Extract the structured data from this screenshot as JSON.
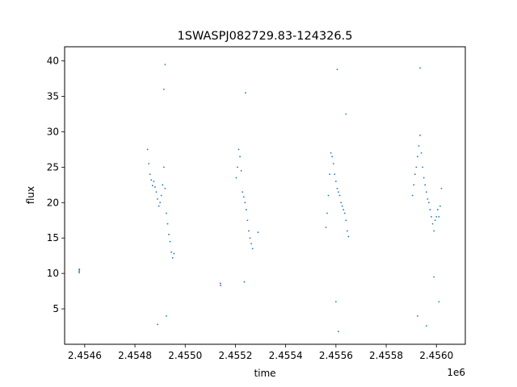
{
  "chart_data": {
    "type": "scatter",
    "title": "1SWASPJ082729.83-124326.5",
    "xlabel": "time",
    "ylabel": "flux",
    "x_offset_label": "1e6",
    "xlim": [
      2454520,
      2456115
    ],
    "ylim": [
      0,
      42
    ],
    "x_ticks": [
      2454600,
      2454800,
      2455000,
      2455200,
      2455400,
      2455600,
      2455800,
      2456000
    ],
    "x_tick_labels": [
      "2.4546",
      "2.4548",
      "2.4550",
      "2.4552",
      "2.4554",
      "2.4556",
      "2.4558",
      "2.4560"
    ],
    "y_ticks": [
      5,
      10,
      15,
      20,
      25,
      30,
      35,
      40
    ],
    "y_tick_labels": [
      "5",
      "10",
      "15",
      "20",
      "25",
      "30",
      "35",
      "40"
    ],
    "grid": false,
    "marker_color": "#1f77b4",
    "series": [
      {
        "points": [
          [
            2454578,
            10.6
          ],
          [
            2454578,
            10.3
          ],
          [
            2454579,
            10.5
          ],
          [
            2454578,
            10.1
          ],
          [
            2454850,
            27.5
          ],
          [
            2454855,
            25.5
          ],
          [
            2454860,
            24.0
          ],
          [
            2454865,
            23.2
          ],
          [
            2454870,
            22.4
          ],
          [
            2454875,
            23.0
          ],
          [
            2454880,
            22.2
          ],
          [
            2454885,
            21.5
          ],
          [
            2454890,
            20.5
          ],
          [
            2454895,
            19.5
          ],
          [
            2454900,
            20.0
          ],
          [
            2454905,
            21.0
          ],
          [
            2454910,
            22.5
          ],
          [
            2454915,
            25.0
          ],
          [
            2454920,
            22.0
          ],
          [
            2454925,
            18.5
          ],
          [
            2454930,
            17.0
          ],
          [
            2454935,
            15.5
          ],
          [
            2454940,
            14.5
          ],
          [
            2454945,
            13.0
          ],
          [
            2454950,
            12.2
          ],
          [
            2454955,
            12.8
          ],
          [
            2455203,
            23.5
          ],
          [
            2455208,
            25.0
          ],
          [
            2455213,
            27.5
          ],
          [
            2455218,
            26.5
          ],
          [
            2455223,
            24.5
          ],
          [
            2455228,
            21.5
          ],
          [
            2455233,
            20.8
          ],
          [
            2455238,
            20.0
          ],
          [
            2455243,
            19.0
          ],
          [
            2455248,
            17.5
          ],
          [
            2455253,
            16.0
          ],
          [
            2455258,
            15.0
          ],
          [
            2455263,
            14.2
          ],
          [
            2455268,
            13.5
          ],
          [
            2455290,
            15.8
          ],
          [
            2455140,
            8.6
          ],
          [
            2455141,
            8.3
          ],
          [
            2455560,
            16.5
          ],
          [
            2455565,
            18.5
          ],
          [
            2455570,
            21.0
          ],
          [
            2455575,
            24.0
          ],
          [
            2455580,
            27.0
          ],
          [
            2455585,
            26.5
          ],
          [
            2455590,
            25.5
          ],
          [
            2455595,
            24.0
          ],
          [
            2455600,
            23.0
          ],
          [
            2455605,
            22.0
          ],
          [
            2455610,
            21.5
          ],
          [
            2455615,
            21.0
          ],
          [
            2455620,
            20.0
          ],
          [
            2455625,
            19.5
          ],
          [
            2455630,
            19.0
          ],
          [
            2455635,
            18.5
          ],
          [
            2455640,
            17.5
          ],
          [
            2455645,
            16.0
          ],
          [
            2455650,
            15.2
          ],
          [
            2455905,
            21.0
          ],
          [
            2455910,
            22.5
          ],
          [
            2455915,
            24.0
          ],
          [
            2455920,
            25.0
          ],
          [
            2455925,
            26.5
          ],
          [
            2455930,
            28.0
          ],
          [
            2455935,
            29.5
          ],
          [
            2455940,
            27.0
          ],
          [
            2455945,
            25.0
          ],
          [
            2455950,
            23.5
          ],
          [
            2455955,
            22.5
          ],
          [
            2455960,
            21.5
          ],
          [
            2455965,
            20.5
          ],
          [
            2455970,
            20.0
          ],
          [
            2455975,
            19.0
          ],
          [
            2455980,
            18.0
          ],
          [
            2455985,
            17.0
          ],
          [
            2455990,
            16.0
          ],
          [
            2455995,
            17.5
          ],
          [
            2456000,
            18.0
          ],
          [
            2456005,
            19.0
          ],
          [
            2456010,
            18.0
          ],
          [
            2456015,
            19.5
          ],
          [
            2456020,
            22.0
          ],
          [
            2454920,
            39.5
          ],
          [
            2454915,
            36.0
          ],
          [
            2454890,
            2.8
          ],
          [
            2454925,
            4.0
          ],
          [
            2455235,
            8.8
          ],
          [
            2455240,
            35.5
          ],
          [
            2455605,
            38.8
          ],
          [
            2455600,
            6.0
          ],
          [
            2455610,
            1.8
          ],
          [
            2455640,
            32.5
          ],
          [
            2455935,
            39.0
          ],
          [
            2455960,
            2.6
          ],
          [
            2455925,
            4.0
          ],
          [
            2455990,
            9.5
          ],
          [
            2456010,
            6.0
          ]
        ]
      }
    ]
  }
}
